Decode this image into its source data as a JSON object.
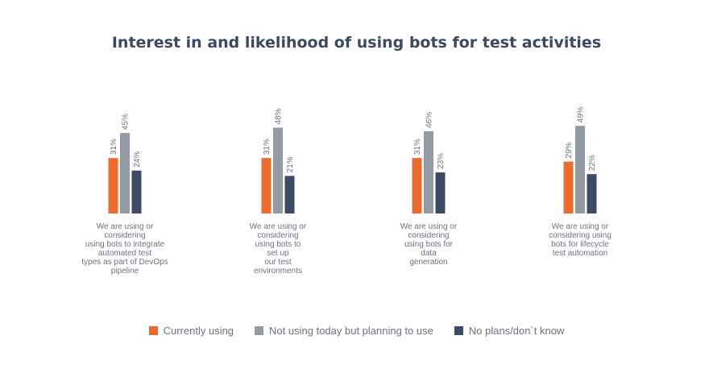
{
  "chart_data": {
    "type": "bar",
    "title": "Interest in and likelihood of using bots for test activities",
    "categories": [
      "We are using or\nconsidering\nusing bots to integrate\nautomated test\ntypes as part of DevOps\npipeline",
      "We are using or\nconsidering\nusing bots to\nset up\nour test\nenvironments",
      "We are using or\nconsidering\nusing bots for\ndata\ngeneration",
      "We are using or\nconsidering using\nbots for lifecycle\ntest automation"
    ],
    "series": [
      {
        "name": "Currently using",
        "values": [
          31,
          31,
          31,
          29
        ],
        "labels": [
          "31%",
          "31%",
          "31%",
          "29%"
        ],
        "color": "#ec6a2c"
      },
      {
        "name": "Not using today but planning to use",
        "values": [
          45,
          48,
          46,
          49
        ],
        "labels": [
          "45%",
          "48%",
          "46%",
          "49%"
        ],
        "color": "#939aa4"
      },
      {
        "name": "No plans/don`t know",
        "values": [
          24,
          21,
          23,
          22
        ],
        "labels": [
          "24%",
          "21%",
          "23%",
          "22%"
        ],
        "color": "#3d4a63"
      }
    ],
    "ylim": [
      0,
      100
    ],
    "grid": false,
    "legend_position": "bottom"
  }
}
